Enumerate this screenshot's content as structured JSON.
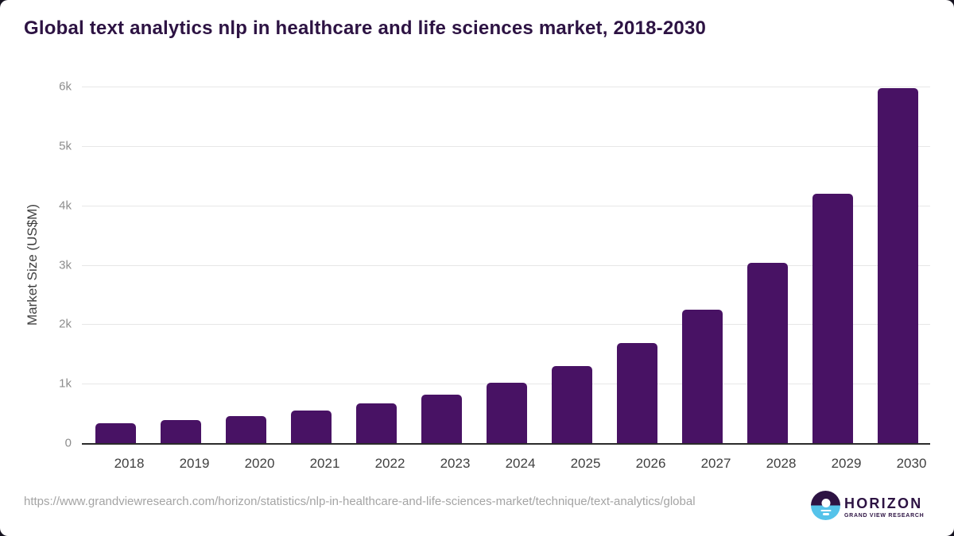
{
  "chart_data": {
    "type": "bar",
    "title": "Global text analytics nlp in healthcare and life sciences market, 2018-2030",
    "ylabel": "Market Size (US$M)",
    "xlabel": "",
    "categories": [
      "2018",
      "2019",
      "2020",
      "2021",
      "2022",
      "2023",
      "2024",
      "2025",
      "2026",
      "2027",
      "2028",
      "2029",
      "2030"
    ],
    "values": [
      330,
      385,
      450,
      545,
      665,
      810,
      1015,
      1300,
      1690,
      2240,
      3030,
      4200,
      5970
    ],
    "ylim": [
      0,
      6000
    ],
    "ytick_values": [
      0,
      1000,
      2000,
      3000,
      4000,
      5000,
      6000
    ],
    "ytick_labels": [
      "0",
      "1k",
      "2k",
      "3k",
      "4k",
      "5k",
      "6k"
    ],
    "grid": true,
    "legend_position": "none",
    "bar_color": "#481264"
  },
  "footer": {
    "source_url": "https://www.grandviewresearch.com/horizon/statistics/nlp-in-healthcare-and-life-sciences-market/technique/text-analytics/global"
  },
  "logo": {
    "brand": "HORIZON",
    "subtitle": "GRAND VIEW RESEARCH"
  },
  "colors": {
    "background": "#ffffff",
    "bar": "#481264",
    "title": "#2d1343",
    "brand_purple": "#2d1343",
    "brand_blue": "#55c3ea",
    "gridline": "#e7e7e7",
    "axis_line": "#2b2b2b",
    "ytick_text": "#8d8d8d",
    "xtick_text": "#3f3f3f",
    "source_text": "#a4a4a4"
  }
}
